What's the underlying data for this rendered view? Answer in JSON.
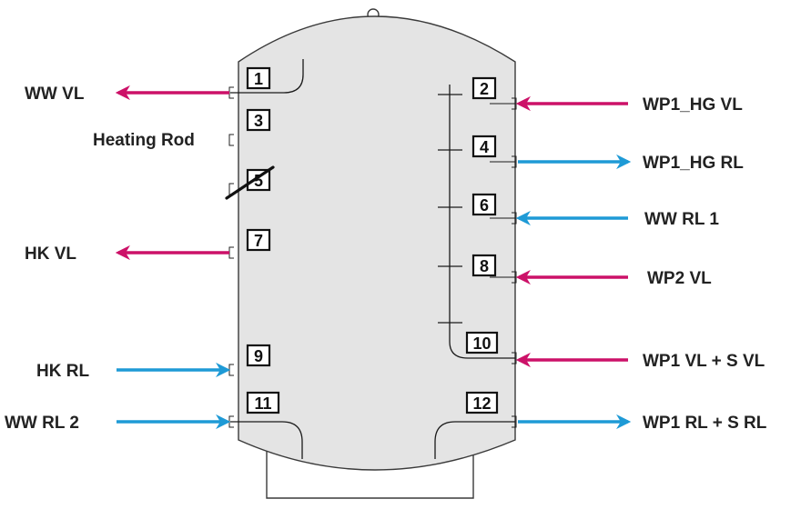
{
  "colors": {
    "tank_fill": "#e4e4e4",
    "outline": "#3a3a3a",
    "supply_arrow": "#cc1168",
    "return_arrow": "#1e9ad6"
  },
  "ports": [
    {
      "number": "1",
      "label": "WW VL",
      "side": "left",
      "arrow": "out",
      "color": "supply"
    },
    {
      "number": "3",
      "label": "Heating Rod",
      "side": "left",
      "arrow": "none"
    },
    {
      "number": "5",
      "label": "",
      "side": "left",
      "arrow": "none",
      "crossed_out": true
    },
    {
      "number": "7",
      "label": "HK VL",
      "side": "left",
      "arrow": "out",
      "color": "supply"
    },
    {
      "number": "9",
      "label": "HK RL",
      "side": "left",
      "arrow": "in",
      "color": "return"
    },
    {
      "number": "11",
      "label": "WW RL 2",
      "side": "left",
      "arrow": "in",
      "color": "return"
    },
    {
      "number": "2",
      "label": "WP1_HG VL",
      "side": "right",
      "arrow": "in",
      "color": "supply"
    },
    {
      "number": "4",
      "label": "WP1_HG RL",
      "side": "right",
      "arrow": "out",
      "color": "return"
    },
    {
      "number": "6",
      "label": "WW RL 1",
      "side": "right",
      "arrow": "in",
      "color": "return"
    },
    {
      "number": "8",
      "label": "WP2 VL",
      "side": "right",
      "arrow": "in",
      "color": "supply"
    },
    {
      "number": "10",
      "label": "WP1 VL + S VL",
      "side": "right",
      "arrow": "in",
      "color": "supply"
    },
    {
      "number": "12",
      "label": "WP1 RL + S RL",
      "side": "right",
      "arrow": "out",
      "color": "return"
    }
  ]
}
